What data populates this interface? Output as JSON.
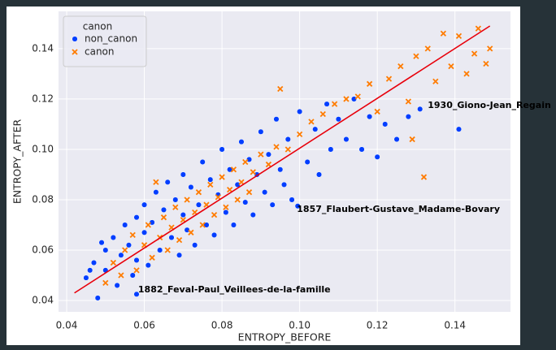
{
  "chart_data": {
    "type": "scatter",
    "xlabel": "ENTROPY_BEFORE",
    "ylabel": "ENTROPY_AFTER",
    "xlim": [
      0.0379,
      0.1543
    ],
    "ylim": [
      0.0355,
      0.1548
    ],
    "xticks": [
      {
        "value": 0.04,
        "label": "0.04"
      },
      {
        "value": 0.06,
        "label": "0.06"
      },
      {
        "value": 0.08,
        "label": "0.08"
      },
      {
        "value": 0.1,
        "label": "0.10"
      },
      {
        "value": 0.12,
        "label": "0.12"
      },
      {
        "value": 0.14,
        "label": "0.14"
      }
    ],
    "yticks": [
      {
        "value": 0.04,
        "label": "0.04"
      },
      {
        "value": 0.06,
        "label": "0.06"
      },
      {
        "value": 0.08,
        "label": "0.08"
      },
      {
        "value": 0.1,
        "label": "0.10"
      },
      {
        "value": 0.12,
        "label": "0.12"
      },
      {
        "value": 0.14,
        "label": "0.14"
      }
    ],
    "grid": true,
    "legend": {
      "title": "canon",
      "position": "upper left"
    },
    "series": [
      {
        "name": "non_canon",
        "color": "#023eff",
        "marker": "circle",
        "x": [
          0.045,
          0.047,
          0.048,
          0.05,
          0.05,
          0.052,
          0.053,
          0.054,
          0.055,
          0.056,
          0.057,
          0.058,
          0.058,
          0.06,
          0.06,
          0.061,
          0.062,
          0.063,
          0.064,
          0.065,
          0.066,
          0.067,
          0.068,
          0.069,
          0.07,
          0.07,
          0.071,
          0.072,
          0.073,
          0.074,
          0.075,
          0.076,
          0.077,
          0.078,
          0.079,
          0.08,
          0.081,
          0.082,
          0.083,
          0.084,
          0.085,
          0.086,
          0.087,
          0.088,
          0.089,
          0.09,
          0.091,
          0.092,
          0.093,
          0.094,
          0.095,
          0.096,
          0.097,
          0.098,
          0.0995,
          0.1,
          0.102,
          0.104,
          0.105,
          0.107,
          0.108,
          0.11,
          0.112,
          0.114,
          0.116,
          0.118,
          0.12,
          0.122,
          0.125,
          0.128,
          0.131,
          0.141,
          0.058,
          0.049,
          0.046
        ],
        "values": [
          0.049,
          0.055,
          0.041,
          0.06,
          0.052,
          0.065,
          0.046,
          0.058,
          0.07,
          0.062,
          0.05,
          0.073,
          0.056,
          0.067,
          0.078,
          0.054,
          0.071,
          0.083,
          0.06,
          0.076,
          0.087,
          0.065,
          0.08,
          0.058,
          0.074,
          0.09,
          0.068,
          0.085,
          0.062,
          0.078,
          0.095,
          0.07,
          0.088,
          0.066,
          0.082,
          0.1,
          0.075,
          0.092,
          0.07,
          0.086,
          0.103,
          0.079,
          0.096,
          0.074,
          0.09,
          0.107,
          0.083,
          0.098,
          0.078,
          0.112,
          0.092,
          0.086,
          0.104,
          0.08,
          0.0775,
          0.115,
          0.095,
          0.108,
          0.09,
          0.118,
          0.1,
          0.112,
          0.104,
          0.12,
          0.1,
          0.113,
          0.097,
          0.11,
          0.104,
          0.113,
          0.116,
          0.108,
          0.0425,
          0.063,
          0.052
        ]
      },
      {
        "name": "canon",
        "color": "#ff7c00",
        "marker": "x",
        "x": [
          0.05,
          0.052,
          0.054,
          0.055,
          0.057,
          0.058,
          0.06,
          0.061,
          0.062,
          0.063,
          0.064,
          0.065,
          0.066,
          0.067,
          0.068,
          0.069,
          0.07,
          0.071,
          0.072,
          0.073,
          0.074,
          0.075,
          0.076,
          0.077,
          0.078,
          0.079,
          0.08,
          0.081,
          0.082,
          0.083,
          0.084,
          0.085,
          0.086,
          0.087,
          0.088,
          0.09,
          0.092,
          0.094,
          0.095,
          0.097,
          0.1,
          0.103,
          0.106,
          0.109,
          0.112,
          0.115,
          0.118,
          0.12,
          0.123,
          0.126,
          0.128,
          0.13,
          0.132,
          0.133,
          0.135,
          0.137,
          0.139,
          0.141,
          0.143,
          0.145,
          0.146,
          0.148,
          0.149,
          0.129
        ],
        "values": [
          0.047,
          0.055,
          0.05,
          0.06,
          0.066,
          0.052,
          0.062,
          0.07,
          0.057,
          0.087,
          0.065,
          0.073,
          0.06,
          0.069,
          0.077,
          0.064,
          0.072,
          0.08,
          0.067,
          0.075,
          0.083,
          0.07,
          0.078,
          0.086,
          0.074,
          0.081,
          0.089,
          0.077,
          0.084,
          0.092,
          0.08,
          0.087,
          0.095,
          0.083,
          0.091,
          0.098,
          0.094,
          0.101,
          0.124,
          0.1,
          0.106,
          0.111,
          0.114,
          0.118,
          0.12,
          0.121,
          0.126,
          0.115,
          0.128,
          0.133,
          0.119,
          0.137,
          0.089,
          0.14,
          0.127,
          0.146,
          0.133,
          0.145,
          0.13,
          0.138,
          0.148,
          0.134,
          0.14,
          0.104
        ]
      }
    ],
    "regression": {
      "x": [
        0.042,
        0.149
      ],
      "values": [
        0.043,
        0.149
      ],
      "color": "#e8000b"
    },
    "annotations": [
      {
        "text": "1930_Giono-Jean_Regain",
        "x": 0.133,
        "y": 0.1174
      },
      {
        "text": "1857_Flaubert-Gustave_Madame-Bovary",
        "x": 0.0993,
        "y": 0.0761
      },
      {
        "text": "1882_Feval-Paul_Veillees-de-la-famille",
        "x": 0.0584,
        "y": 0.0442
      }
    ]
  }
}
